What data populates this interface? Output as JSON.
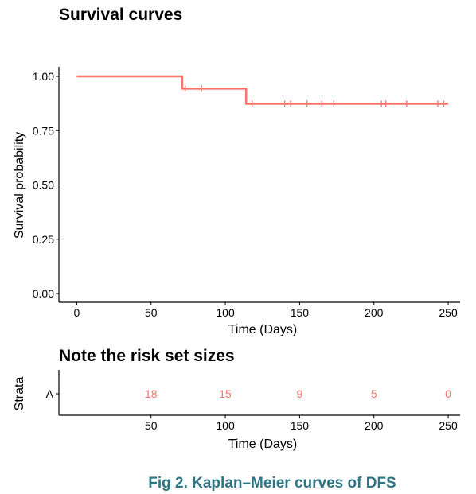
{
  "chart_data": [
    {
      "type": "line",
      "title": "Survival curves",
      "xlabel": "Time (Days)",
      "ylabel": "Survival probability",
      "xlim": [
        -12,
        258
      ],
      "ylim": [
        0,
        1
      ],
      "x_ticks": [
        0,
        50,
        100,
        150,
        200,
        250
      ],
      "y_ticks": [
        0.0,
        0.25,
        0.5,
        0.75,
        1.0
      ],
      "y_tick_labels": [
        "0.00",
        "0.25",
        "0.50",
        "0.75",
        "1.00"
      ],
      "grid": false,
      "color": "#F8766D",
      "series": [
        {
          "step_times": [
            0,
            71,
            114,
            250
          ],
          "step_values": [
            1.0,
            0.944,
            0.874,
            0.874
          ],
          "censor_times": [
            73,
            84,
            118,
            140,
            144,
            155,
            165,
            173,
            205,
            208,
            222,
            243,
            247
          ],
          "censor_values": [
            0.944,
            0.944,
            0.874,
            0.874,
            0.874,
            0.874,
            0.874,
            0.874,
            0.874,
            0.874,
            0.874,
            0.874,
            0.874
          ]
        }
      ]
    },
    {
      "type": "table",
      "title": "Note the risk set sizes",
      "xlabel": "Time (Days)",
      "ylabel": "Strata",
      "strata_label": "A",
      "x_ticks": [
        50,
        100,
        150,
        200,
        250
      ],
      "times": [
        50,
        100,
        150,
        200,
        250
      ],
      "at_risk": [
        18,
        15,
        9,
        5,
        0
      ],
      "color": "#F8766D"
    }
  ],
  "caption": "Fig 2. Kaplan–Meier curves of DFS",
  "caption_color": "#2E7583"
}
